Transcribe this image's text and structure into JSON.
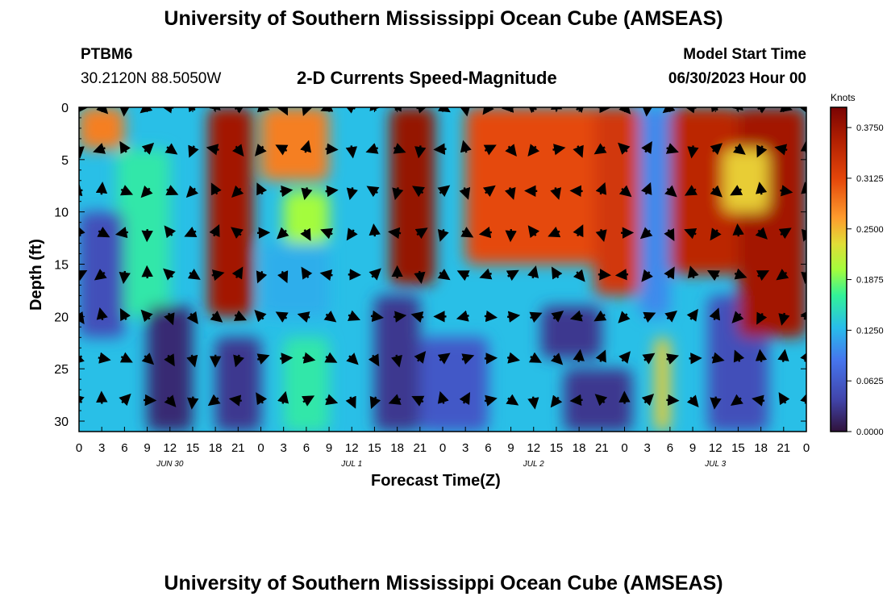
{
  "page": {
    "title_top": "University of Southern Mississippi Ocean Cube (AMSEAS)",
    "title_bottom": "University of Southern Mississippi Ocean Cube (AMSEAS)",
    "station_id": "PTBM6",
    "station_coords": "30.2120N  88.5050W",
    "product": "2-D Currents Speed-Magnitude",
    "model_label": "Model Start Time",
    "model_time": "06/30/2023 Hour 00"
  },
  "chart_data": {
    "type": "heatmap",
    "title": "2-D Currents Speed-Magnitude",
    "xlabel": "Forecast Time(Z)",
    "ylabel": "Depth (ft)",
    "xlim": [
      0,
      96
    ],
    "ylim": [
      31,
      0
    ],
    "x_tick_labels": [
      "0",
      "3",
      "6",
      "9",
      "12",
      "15",
      "18",
      "21",
      "0",
      "3",
      "6",
      "9",
      "12",
      "15",
      "18",
      "21",
      "0",
      "3",
      "6",
      "9",
      "12",
      "15",
      "18",
      "21",
      "0",
      "3",
      "6",
      "9",
      "12",
      "15",
      "18",
      "21",
      "0"
    ],
    "y_ticks": [
      0,
      5,
      10,
      15,
      20,
      25,
      30
    ],
    "date_labels": [
      {
        "text": "JUN 30",
        "x": 12
      },
      {
        "text": "JUL 1",
        "x": 36
      },
      {
        "text": "JUL 2",
        "x": 60
      },
      {
        "text": "JUL 3",
        "x": 84
      }
    ],
    "colorbar": {
      "title": "Knots",
      "min": 0.0,
      "max": 0.4,
      "tick_values": [
        0.0,
        0.0625,
        0.125,
        0.1875,
        0.25,
        0.3125,
        0.375
      ],
      "tick_labels": [
        "0.0000",
        "0.0625",
        "0.1250",
        "0.1875",
        "0.2500",
        "0.3125",
        "0.3750"
      ]
    },
    "arrow_times": [
      0,
      3,
      6,
      9,
      12,
      15,
      18,
      21,
      24,
      27,
      30,
      33,
      36,
      39,
      42,
      45,
      48,
      51,
      54,
      57,
      60,
      63,
      66,
      69,
      72,
      75,
      78,
      81,
      84,
      87,
      90,
      93,
      96
    ],
    "arrow_depths": [
      0,
      4,
      8,
      12,
      16,
      20,
      24,
      28
    ],
    "speed_surface": [
      {
        "t0": 0,
        "t1": 6,
        "d0": 0,
        "d1": 4,
        "v": 0.28
      },
      {
        "t0": 5,
        "t1": 12,
        "d0": 4,
        "d1": 20,
        "v": 0.16
      },
      {
        "t0": 0,
        "t1": 6,
        "d0": 10,
        "d1": 22,
        "v": 0.05
      },
      {
        "t0": 9,
        "t1": 15,
        "d0": 19,
        "d1": 31,
        "v": 0.02
      },
      {
        "t0": 17,
        "t1": 23,
        "d0": 0,
        "d1": 20,
        "v": 0.37
      },
      {
        "t0": 24,
        "t1": 33,
        "d0": 0,
        "d1": 7,
        "v": 0.28
      },
      {
        "t0": 27,
        "t1": 33,
        "d0": 8,
        "d1": 13,
        "v": 0.2
      },
      {
        "t0": 24,
        "t1": 33,
        "d0": 13,
        "d1": 20,
        "v": 0.12
      },
      {
        "t0": 18,
        "t1": 24,
        "d0": 22,
        "d1": 31,
        "v": 0.03
      },
      {
        "t0": 27,
        "t1": 33,
        "d0": 22,
        "d1": 31,
        "v": 0.16
      },
      {
        "t0": 39,
        "t1": 45,
        "d0": 18,
        "d1": 31,
        "v": 0.03
      },
      {
        "t0": 41,
        "t1": 47,
        "d0": 0,
        "d1": 17,
        "v": 0.38
      },
      {
        "t0": 45,
        "t1": 54,
        "d0": 22,
        "d1": 31,
        "v": 0.06
      },
      {
        "t0": 51,
        "t1": 73,
        "d0": 0,
        "d1": 15,
        "v": 0.31
      },
      {
        "t0": 61,
        "t1": 69,
        "d0": 19,
        "d1": 24,
        "v": 0.03
      },
      {
        "t0": 64,
        "t1": 73,
        "d0": 25,
        "d1": 31,
        "v": 0.03
      },
      {
        "t0": 68,
        "t1": 74,
        "d0": 0,
        "d1": 18,
        "v": 0.33
      },
      {
        "t0": 74,
        "t1": 78,
        "d0": 0,
        "d1": 20,
        "v": 0.1
      },
      {
        "t0": 76,
        "t1": 78,
        "d0": 22,
        "d1": 31,
        "v": 0.24
      },
      {
        "t0": 78,
        "t1": 87,
        "d0": 0,
        "d1": 16,
        "v": 0.35
      },
      {
        "t0": 83,
        "t1": 91,
        "d0": 18,
        "d1": 31,
        "v": 0.05
      },
      {
        "t0": 87,
        "t1": 96,
        "d0": 0,
        "d1": 22,
        "v": 0.37
      },
      {
        "t0": 85,
        "t1": 91,
        "d0": 4,
        "d1": 10,
        "v": 0.24
      }
    ]
  }
}
